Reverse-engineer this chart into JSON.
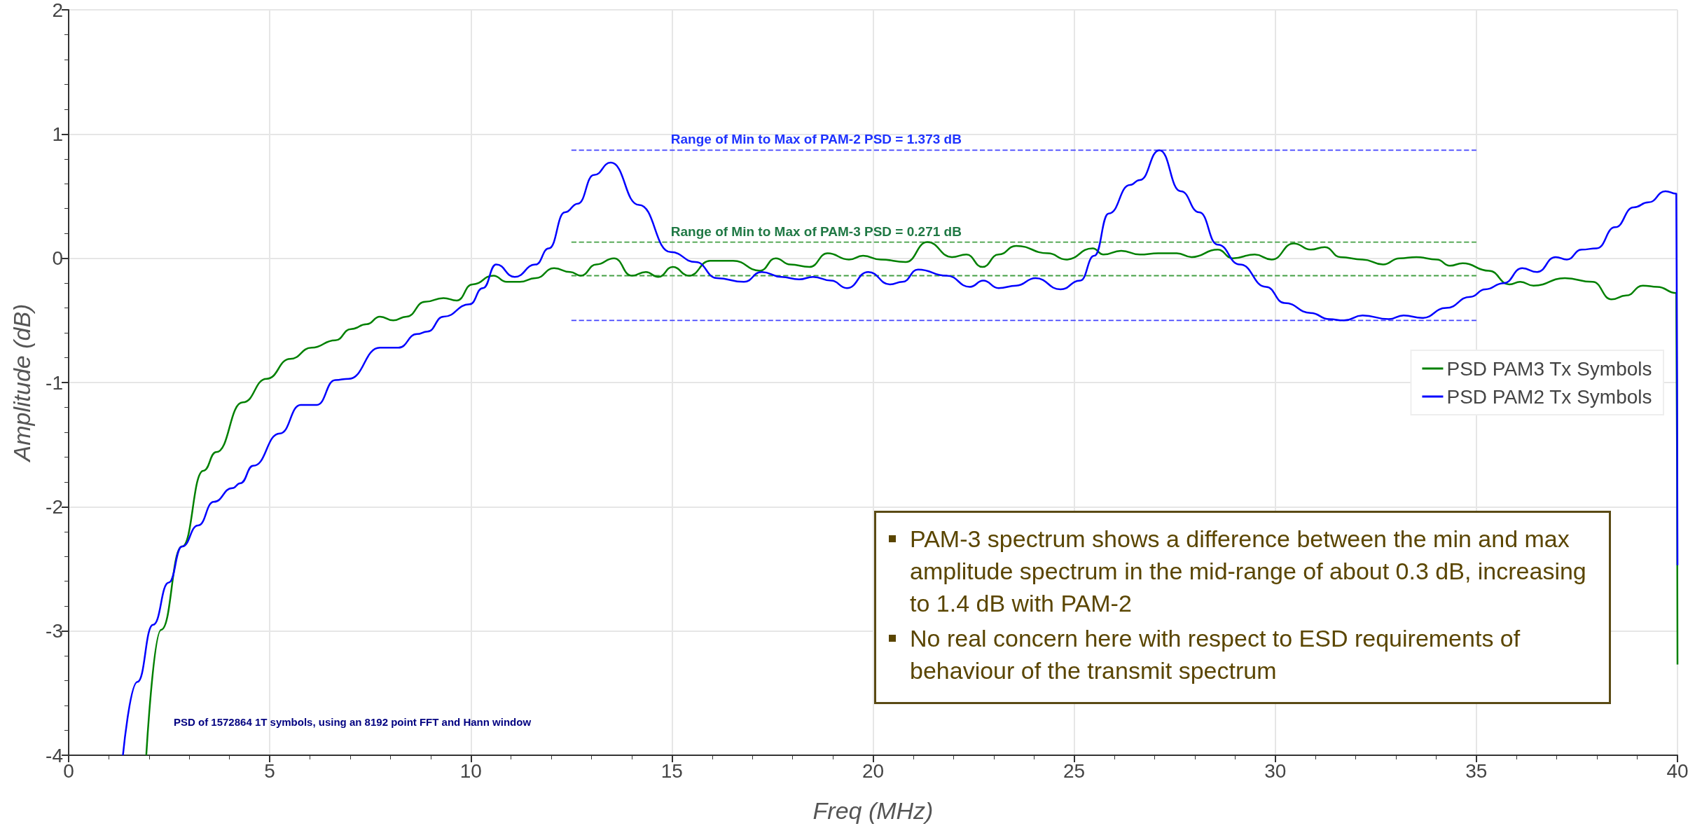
{
  "chart_data": {
    "type": "line",
    "xlabel": "Freq (MHz)",
    "ylabel": "Amplitude (dB)",
    "xlim": [
      0,
      40
    ],
    "ylim": [
      -4,
      2
    ],
    "xticks": [
      0,
      5,
      10,
      15,
      20,
      25,
      30,
      35,
      40
    ],
    "yticks": [
      -4,
      -3,
      -2,
      -1,
      0,
      1,
      2
    ],
    "grid": true,
    "legend": "right",
    "marker": "none",
    "series": [
      {
        "name": "PSD PAM3 Tx Symbols",
        "color": "#008000",
        "x": [
          1.93,
          2.3,
          2.82,
          3.35,
          3.67,
          4.33,
          4.92,
          5.51,
          6.04,
          6.63,
          7.02,
          7.41,
          7.74,
          8.07,
          8.4,
          8.86,
          9.32,
          9.65,
          10.04,
          10.56,
          10.89,
          11.22,
          11.61,
          12.07,
          12.47,
          12.73,
          13.12,
          13.56,
          14.0,
          14.35,
          14.66,
          15.02,
          15.42,
          15.95,
          16.52,
          17.19,
          17.58,
          17.94,
          18.42,
          18.87,
          19.4,
          19.75,
          20.19,
          20.81,
          21.35,
          21.96,
          22.32,
          22.72,
          23.12,
          23.56,
          24.35,
          24.8,
          25.46,
          25.73,
          26.17,
          26.63,
          27.09,
          27.55,
          27.92,
          28.57,
          28.94,
          29.49,
          29.91,
          30.46,
          30.88,
          31.23,
          31.62,
          32.17,
          32.68,
          33.09,
          33.51,
          34.02,
          34.34,
          34.66,
          35.31,
          35.82,
          36.09,
          36.42,
          37.2,
          37.89,
          38.36,
          38.72,
          39.14,
          39.5,
          39.97,
          40
        ],
        "values": [
          -4,
          -2.99,
          -2.32,
          -1.71,
          -1.56,
          -1.16,
          -0.97,
          -0.81,
          -0.72,
          -0.66,
          -0.57,
          -0.53,
          -0.47,
          -0.5,
          -0.47,
          -0.35,
          -0.32,
          -0.34,
          -0.21,
          -0.14,
          -0.19,
          -0.19,
          -0.16,
          -0.08,
          -0.11,
          -0.14,
          -0.05,
          0.0,
          -0.14,
          -0.11,
          -0.15,
          -0.07,
          -0.14,
          -0.02,
          -0.02,
          -0.1,
          0.0,
          -0.05,
          -0.07,
          0.04,
          -0.01,
          0.02,
          -0.01,
          -0.03,
          0.13,
          0.01,
          0.03,
          -0.07,
          0.03,
          0.1,
          0.04,
          -0.01,
          0.08,
          0.03,
          0.06,
          0.03,
          0.04,
          0.04,
          0.01,
          0.07,
          0.0,
          0.03,
          -0.01,
          0.12,
          0.07,
          0.09,
          0.01,
          -0.01,
          -0.05,
          0.0,
          0.01,
          -0.01,
          -0.06,
          -0.04,
          -0.1,
          -0.21,
          -0.19,
          -0.22,
          -0.16,
          -0.19,
          -0.33,
          -0.3,
          -0.22,
          -0.23,
          -0.28,
          -3.27
        ]
      },
      {
        "name": "PSD PAM2 Tx Symbols",
        "color": "#0000ff",
        "x": [
          1.35,
          1.71,
          2.1,
          2.49,
          2.82,
          3.22,
          3.61,
          4.07,
          4.27,
          4.59,
          5.25,
          5.77,
          6.17,
          6.63,
          6.96,
          7.74,
          8.2,
          8.66,
          8.92,
          9.32,
          9.97,
          10.3,
          10.63,
          11.09,
          11.61,
          11.94,
          12.34,
          12.66,
          13.06,
          13.48,
          14.18,
          14.97,
          15.59,
          16.12,
          16.79,
          17.23,
          17.72,
          18.16,
          18.51,
          18.96,
          19.35,
          19.88,
          20.42,
          20.73,
          21.12,
          21.83,
          22.41,
          22.74,
          23.12,
          23.56,
          24.04,
          24.66,
          25.15,
          25.5,
          25.86,
          26.39,
          26.63,
          27.12,
          27.65,
          28.11,
          28.57,
          29.12,
          29.77,
          30.23,
          30.88,
          31.34,
          31.71,
          32.17,
          32.82,
          33.19,
          33.65,
          34.25,
          34.85,
          35.22,
          35.68,
          36.14,
          36.51,
          36.97,
          37.25,
          37.62,
          37.99,
          38.45,
          38.91,
          39.28,
          39.7,
          39.97,
          40
        ],
        "values": [
          -4,
          -3.41,
          -2.95,
          -2.61,
          -2.32,
          -2.15,
          -1.96,
          -1.85,
          -1.81,
          -1.67,
          -1.41,
          -1.18,
          -1.18,
          -0.98,
          -0.97,
          -0.72,
          -0.72,
          -0.61,
          -0.59,
          -0.47,
          -0.37,
          -0.24,
          -0.05,
          -0.15,
          -0.05,
          0.08,
          0.37,
          0.44,
          0.67,
          0.77,
          0.43,
          0.05,
          -0.03,
          -0.16,
          -0.19,
          -0.11,
          -0.15,
          -0.17,
          -0.15,
          -0.18,
          -0.24,
          -0.11,
          -0.21,
          -0.19,
          -0.09,
          -0.14,
          -0.23,
          -0.18,
          -0.24,
          -0.22,
          -0.16,
          -0.25,
          -0.18,
          0.02,
          0.36,
          0.59,
          0.63,
          0.87,
          0.54,
          0.37,
          0.11,
          -0.05,
          -0.23,
          -0.36,
          -0.44,
          -0.49,
          -0.5,
          -0.46,
          -0.49,
          -0.46,
          -0.48,
          -0.4,
          -0.31,
          -0.25,
          -0.2,
          -0.08,
          -0.11,
          0.01,
          -0.01,
          0.07,
          0.08,
          0.25,
          0.41,
          0.45,
          0.54,
          0.52,
          -2.47
        ]
      },
      {
        "color": "#4444ff",
        "line_style": "dashed",
        "x": [
          12.5,
          35
        ],
        "values": [
          0.87,
          0.87
        ]
      },
      {
        "color": "#4444ff",
        "line_style": "dashed",
        "x": [
          12.5,
          35
        ],
        "values": [
          -0.5,
          -0.5
        ]
      },
      {
        "color": "#44a044",
        "line_style": "dashed",
        "x": [
          12.5,
          35
        ],
        "values": [
          0.13,
          0.13
        ]
      },
      {
        "color": "#44a044",
        "line_style": "dashed",
        "x": [
          12.5,
          35
        ],
        "values": [
          -0.14,
          -0.14
        ]
      }
    ],
    "annotations": [
      "Range of Min to Max of PAM-2 PSD = 1.373 dB",
      "Range of Min to Max of PAM-3 PSD = 0.271 dB",
      "PSD of 1572864 1T symbols, using an 8192 point FFT and Hann window",
      "PAM-3 spectrum shows a difference between the min and max amplitude spectrum in the mid-range of about 0.3 dB, increasing to 1.4 dB with PAM-2",
      "No real concern here with respect to ESD requirements of behaviour of the transmit spectrum"
    ]
  }
}
